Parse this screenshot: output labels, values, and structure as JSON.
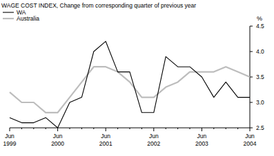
{
  "chart_data": {
    "type": "line",
    "title": "WAGE COST INDEX, Change from corresponding quarter of previous year",
    "y_label": "%",
    "categories": [
      "Jun 1999",
      null,
      null,
      null,
      "Jun 2000",
      null,
      null,
      null,
      "Jun 2001",
      null,
      null,
      null,
      "Jun 2002",
      null,
      null,
      null,
      "Jun 2003",
      null,
      null,
      null,
      "Jun 2004"
    ],
    "series": [
      {
        "name": "WA",
        "color": "#000000",
        "values": [
          2.7,
          2.6,
          2.6,
          2.7,
          2.5,
          3.0,
          3.1,
          4.0,
          4.2,
          3.6,
          3.6,
          2.8,
          2.8,
          3.9,
          3.7,
          3.7,
          3.5,
          3.1,
          3.4,
          3.1,
          3.1
        ]
      },
      {
        "name": "Australia",
        "color": "#bdbdbd",
        "values": [
          3.2,
          3.0,
          3.0,
          2.8,
          2.8,
          3.1,
          3.4,
          3.7,
          3.7,
          3.6,
          3.4,
          3.1,
          3.1,
          3.3,
          3.4,
          3.6,
          3.6,
          3.6,
          3.7,
          3.6,
          3.5
        ]
      }
    ],
    "ylim": [
      2.5,
      4.5
    ],
    "yticks": [
      2.5,
      {
        "value": 3,
        "label": "3.0"
      },
      3.5,
      {
        "value": 4,
        "label": "4.0"
      },
      4.5
    ],
    "grid": false,
    "legend": "top-left"
  }
}
